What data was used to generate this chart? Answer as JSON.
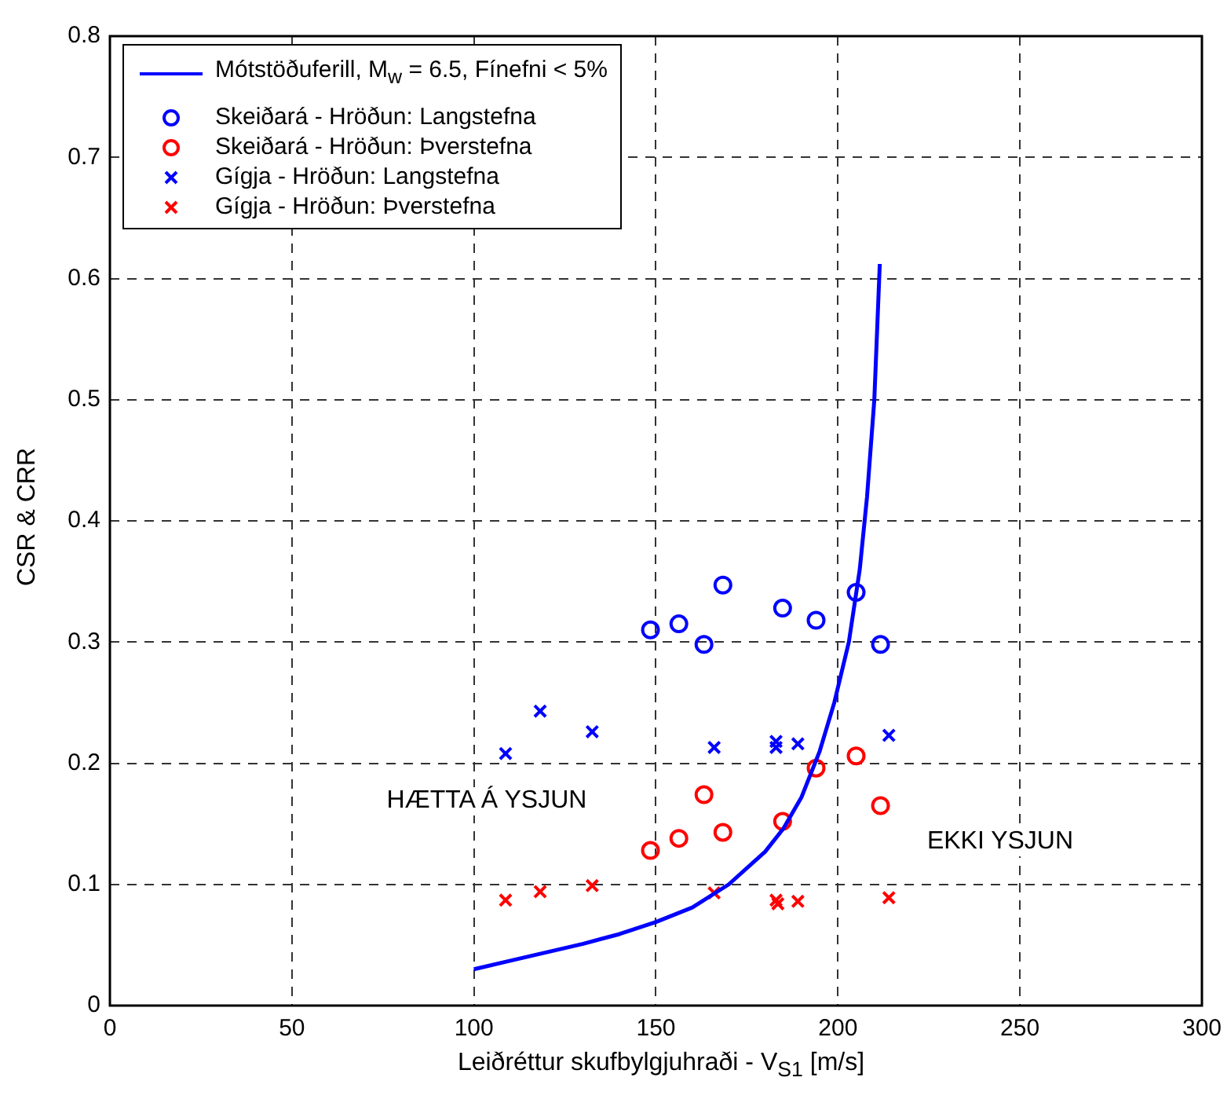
{
  "chart_data": {
    "type": "scatter",
    "xlabel": "Leiðréttur skufbylgjuhraði - V$_{S1}$ [m/s]",
    "ylabel": "CSR & CRR",
    "xlim": [
      0,
      300
    ],
    "xticks": [
      0,
      50,
      100,
      150,
      200,
      250,
      300
    ],
    "ylim": [
      0,
      0.8
    ],
    "yticks": [
      0,
      0.1,
      0.2,
      0.3,
      0.4,
      0.5,
      0.6,
      0.7,
      0.8
    ],
    "grid": true,
    "legend": "top left",
    "series": [
      {
        "name": "Mótstöðuferill, M$_{w}$ = 6.5, Fínefni < 5%",
        "type": "line",
        "marker": "none",
        "line_style": "solid",
        "color": "#0000ff",
        "x": [
          100,
          110,
          120,
          130,
          140,
          150,
          160,
          170,
          180,
          185,
          190,
          195,
          199,
          203,
          206,
          208,
          210,
          211.5
        ],
        "values": [
          0.03,
          0.037,
          0.044,
          0.051,
          0.059,
          0.069,
          0.081,
          0.1,
          0.127,
          0.146,
          0.172,
          0.21,
          0.25,
          0.3,
          0.36,
          0.42,
          0.5,
          0.612
        ]
      },
      {
        "name": "Skeiðará - Hröðun: Langstefna",
        "type": "scatter",
        "marker": "circle",
        "color": "#0000ff",
        "x": [
          148.5,
          156.3,
          163.2,
          168.4,
          184.8,
          194,
          205,
          211.7
        ],
        "values": [
          0.31,
          0.315,
          0.298,
          0.347,
          0.328,
          0.318,
          0.341,
          0.298
        ]
      },
      {
        "name": "Skeiðará - Hröðun: Þverstefna",
        "type": "scatter",
        "marker": "circle",
        "color": "#ff0000",
        "x": [
          148.5,
          156.3,
          163.2,
          168.4,
          184.8,
          194,
          205,
          211.7
        ],
        "values": [
          0.128,
          0.138,
          0.174,
          0.143,
          0.152,
          0.196,
          0.206,
          0.165
        ]
      },
      {
        "name": "Gígja - Hröðun: Langstefna",
        "type": "scatter",
        "marker": "cross",
        "color": "#0000ff",
        "x": [
          108.7,
          118.2,
          132.5,
          166,
          183,
          183,
          189,
          214
        ],
        "values": [
          0.208,
          0.243,
          0.226,
          0.213,
          0.218,
          0.213,
          0.216,
          0.223
        ]
      },
      {
        "name": "Gígja - Hröðun: Þverstefna",
        "type": "scatter",
        "marker": "cross",
        "color": "#ff0000",
        "x": [
          108.7,
          118.2,
          132.5,
          166,
          183,
          183.5,
          189,
          214
        ],
        "values": [
          0.087,
          0.094,
          0.099,
          0.093,
          0.087,
          0.084,
          0.086,
          0.089
        ]
      }
    ],
    "annotations": [
      "HÆTTA Á YSJUN",
      "EKKI YSJUN"
    ]
  }
}
